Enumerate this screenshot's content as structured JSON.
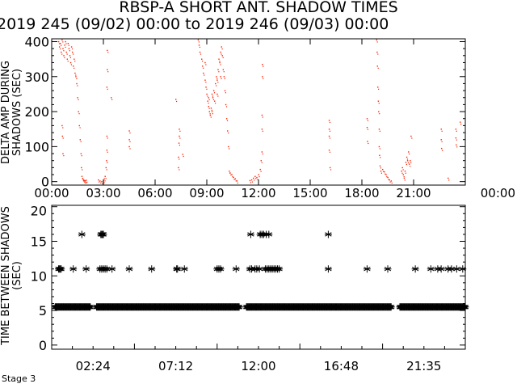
{
  "chart_data": [
    {
      "type": "scatter",
      "title": "RBSP-A SHORT ANT. SHADOW TIMES",
      "subtitle": "2019 245 (09/02) 00:00 to 2019 246 (09/03) 00:00",
      "ylabel": "DELTA AMP DURING SHADOWS (SEC)",
      "xlabel": "",
      "xlim": [
        0,
        24
      ],
      "ylim": [
        -10,
        408
      ],
      "x_tick_labels": [
        "00:00",
        "03:00",
        "06:00",
        "09:00",
        "12:00",
        "15:00",
        "18:00",
        "21:00",
        "00:00"
      ],
      "y_ticks": [
        0,
        100,
        200,
        300,
        400
      ],
      "y_tick_labels": [
        "0",
        "100",
        "200",
        "300",
        "400"
      ],
      "grid": false,
      "color": "#ff2000",
      "points": [
        [
          0.4,
          400
        ],
        [
          0.45,
          385
        ],
        [
          0.5,
          395
        ],
        [
          0.55,
          370
        ],
        [
          0.6,
          405
        ],
        [
          0.65,
          380
        ],
        [
          0.7,
          360
        ],
        [
          0.75,
          390
        ],
        [
          0.8,
          400
        ],
        [
          0.85,
          370
        ],
        [
          0.9,
          350
        ],
        [
          0.95,
          395
        ],
        [
          1.0,
          380
        ],
        [
          1.05,
          360
        ],
        [
          1.1,
          340
        ],
        [
          1.15,
          385
        ],
        [
          1.2,
          370
        ],
        [
          1.25,
          330
        ],
        [
          1.3,
          350
        ],
        [
          1.35,
          310
        ],
        [
          1.4,
          300
        ],
        [
          1.45,
          280
        ],
        [
          1.5,
          240
        ],
        [
          1.55,
          200
        ],
        [
          1.6,
          160
        ],
        [
          1.65,
          120
        ],
        [
          1.7,
          80
        ],
        [
          1.72,
          40
        ],
        [
          1.75,
          15
        ],
        [
          1.8,
          8
        ],
        [
          1.85,
          5
        ],
        [
          1.9,
          3
        ],
        [
          1.95,
          2
        ],
        [
          2.0,
          4
        ],
        [
          0.6,
          160
        ],
        [
          0.62,
          130
        ],
        [
          0.65,
          80
        ],
        [
          2.7,
          5
        ],
        [
          2.8,
          2
        ],
        [
          2.9,
          0
        ],
        [
          3.0,
          3
        ],
        [
          3.05,
          8
        ],
        [
          3.1,
          15
        ],
        [
          3.15,
          40
        ],
        [
          3.18,
          60
        ],
        [
          3.2,
          90
        ],
        [
          3.2,
          130
        ],
        [
          3.2,
          270
        ],
        [
          3.22,
          320
        ],
        [
          3.22,
          375
        ],
        [
          3.45,
          240
        ],
        [
          4.5,
          100
        ],
        [
          4.5,
          120
        ],
        [
          4.5,
          145
        ],
        [
          7.2,
          235
        ],
        [
          7.35,
          40
        ],
        [
          7.35,
          70
        ],
        [
          7.38,
          110
        ],
        [
          7.4,
          130
        ],
        [
          7.4,
          150
        ],
        [
          7.6,
          78
        ],
        [
          8.5,
          405
        ],
        [
          8.55,
          390
        ],
        [
          8.6,
          370
        ],
        [
          8.7,
          350
        ],
        [
          8.75,
          330
        ],
        [
          8.8,
          310
        ],
        [
          8.9,
          290
        ],
        [
          8.95,
          270
        ],
        [
          9.0,
          250
        ],
        [
          9.05,
          230
        ],
        [
          9.1,
          215
        ],
        [
          9.15,
          200
        ],
        [
          9.2,
          190
        ],
        [
          9.25,
          210
        ],
        [
          9.3,
          250
        ],
        [
          9.35,
          240
        ],
        [
          9.4,
          260
        ],
        [
          9.45,
          230
        ],
        [
          9.5,
          280
        ],
        [
          9.55,
          300
        ],
        [
          9.6,
          290
        ],
        [
          9.65,
          320
        ],
        [
          9.7,
          350
        ],
        [
          9.75,
          340
        ],
        [
          9.8,
          370
        ],
        [
          9.85,
          385
        ],
        [
          9.9,
          360
        ],
        [
          9.95,
          320
        ],
        [
          10.0,
          300
        ],
        [
          10.05,
          260
        ],
        [
          10.1,
          220
        ],
        [
          10.15,
          180
        ],
        [
          10.2,
          145
        ],
        [
          10.25,
          100
        ],
        [
          10.3,
          30
        ],
        [
          10.35,
          25
        ],
        [
          10.45,
          20
        ],
        [
          10.55,
          12
        ],
        [
          10.65,
          8
        ],
        [
          10.75,
          2
        ],
        [
          8.9,
          340
        ],
        [
          9.1,
          240
        ],
        [
          9.3,
          200
        ],
        [
          9.6,
          250
        ],
        [
          9.8,
          300
        ],
        [
          11.5,
          3
        ],
        [
          11.6,
          5
        ],
        [
          11.7,
          10
        ],
        [
          11.8,
          15
        ],
        [
          11.9,
          12
        ],
        [
          12.0,
          20
        ],
        [
          12.1,
          35
        ],
        [
          12.15,
          60
        ],
        [
          12.2,
          85
        ],
        [
          12.2,
          150
        ],
        [
          12.2,
          190
        ],
        [
          12.22,
          300
        ],
        [
          12.22,
          335
        ],
        [
          16.1,
          175
        ],
        [
          16.1,
          150
        ],
        [
          16.1,
          130
        ],
        [
          16.1,
          90
        ],
        [
          16.15,
          40
        ],
        [
          18.3,
          180
        ],
        [
          18.3,
          155
        ],
        [
          18.32,
          115
        ],
        [
          18.85,
          405
        ],
        [
          18.88,
          370
        ],
        [
          18.9,
          330
        ],
        [
          18.92,
          270
        ],
        [
          18.95,
          230
        ],
        [
          18.97,
          200
        ],
        [
          19.0,
          150
        ],
        [
          19.0,
          100
        ],
        [
          19.02,
          75
        ],
        [
          19.05,
          45
        ],
        [
          19.1,
          30
        ],
        [
          19.2,
          35
        ],
        [
          19.3,
          28
        ],
        [
          19.4,
          20
        ],
        [
          19.5,
          12
        ],
        [
          19.6,
          5
        ],
        [
          19.7,
          2
        ],
        [
          20.3,
          30
        ],
        [
          20.35,
          40
        ],
        [
          20.4,
          20
        ],
        [
          20.45,
          10
        ],
        [
          20.5,
          30
        ],
        [
          20.55,
          55
        ],
        [
          20.6,
          70
        ],
        [
          20.65,
          60
        ],
        [
          20.7,
          85
        ],
        [
          20.75,
          50
        ],
        [
          20.8,
          60
        ],
        [
          20.85,
          130
        ],
        [
          22.6,
          150
        ],
        [
          22.6,
          120
        ],
        [
          22.62,
          95
        ],
        [
          23.0,
          10
        ],
        [
          23.45,
          150
        ],
        [
          23.45,
          125
        ],
        [
          23.47,
          105
        ],
        [
          23.7,
          170
        ]
      ]
    },
    {
      "type": "scatter",
      "ylabel": "TIME BETWEEN SHADOWS (SEC)",
      "ylabel_overlap": "Stage 3",
      "xlim": [
        0,
        24
      ],
      "ylim": [
        -0.6,
        20.2
      ],
      "x_ticks": [
        2.4,
        7.2,
        12.0,
        16.8,
        21.6
      ],
      "x_tick_labels": [
        "02:24",
        "07:12",
        "12:00",
        "16:48",
        "21:35"
      ],
      "y_ticks": [
        0,
        5,
        10,
        15,
        20
      ],
      "y_tick_labels": [
        "0",
        "5",
        "10",
        "15",
        "20"
      ],
      "grid": false,
      "marker": "asterisk",
      "color": "#000000",
      "band": {
        "y": 5.5,
        "ranges": [
          [
            0.2,
            2.25
          ],
          [
            2.6,
            10.9
          ],
          [
            11.3,
            19.7
          ],
          [
            20.2,
            24
          ]
        ]
      },
      "series": [
        {
          "y": 11,
          "x": [
            0.4,
            0.45,
            0.5,
            0.55,
            1.25,
            2.0,
            2.8,
            2.9,
            3.0,
            3.1,
            3.2,
            3.5,
            4.5,
            5.8,
            7.25,
            7.3,
            7.7,
            9.6,
            9.7,
            9.8,
            10.7,
            11.5,
            11.6,
            11.8,
            11.9,
            12.05,
            12.4,
            12.5,
            12.6,
            12.7,
            12.8,
            12.9,
            13.0,
            13.1,
            13.2,
            16.05,
            18.3,
            19.5,
            21.1,
            22.0,
            22.4,
            22.6,
            23.0,
            23.2,
            23.5,
            23.85
          ]
        },
        {
          "y": 16,
          "x": [
            1.75,
            2.85,
            2.9,
            2.95,
            3.0,
            11.55,
            12.1,
            12.2,
            12.3,
            12.45,
            12.6,
            16.05
          ]
        }
      ]
    }
  ]
}
